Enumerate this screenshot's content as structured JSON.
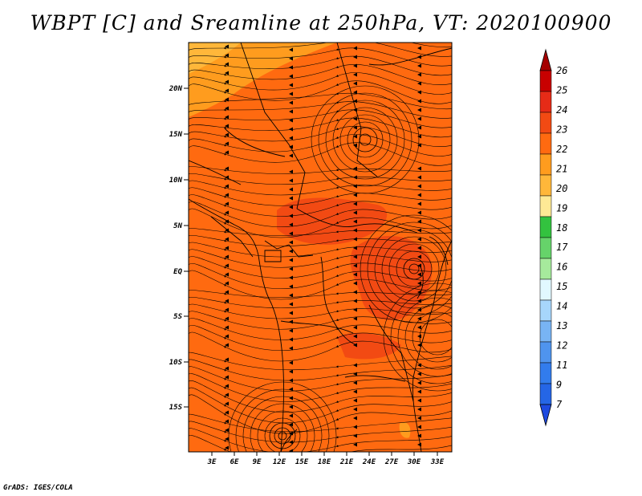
{
  "title": "WBPT [C] and Sreamline at 250hPa, VT: 2020100900",
  "footer": "GrADS: IGES/COLA",
  "map": {
    "lat_labels": [
      "20N",
      "15N",
      "10N",
      "5N",
      "EQ",
      "5S",
      "10S",
      "15S"
    ],
    "lon_labels": [
      "3E",
      "6E",
      "9E",
      "12E",
      "15E",
      "18E",
      "21E",
      "24E",
      "27E",
      "30E",
      "33E"
    ],
    "field_colors": {
      "dominant": "#ff6a10",
      "high": "#f24a13",
      "north_low": "#ff9c1e",
      "north_lowest": "#ffb73a"
    }
  },
  "colorbar": {
    "labels": [
      "26",
      "25",
      "24",
      "23",
      "22",
      "21",
      "20",
      "19",
      "18",
      "17",
      "16",
      "15",
      "14",
      "13",
      "12",
      "11",
      "9",
      "7"
    ],
    "colors": [
      "#a50000",
      "#c80000",
      "#e62b17",
      "#f24a13",
      "#ff6a10",
      "#ff9c1e",
      "#ffb73a",
      "#fee995",
      "#33c23f",
      "#66d36a",
      "#a6ea9c",
      "#e1f8ff",
      "#a7d6fb",
      "#78b4f4",
      "#4f94ee",
      "#327ced",
      "#2566e6",
      "#1e4ae0"
    ]
  }
}
